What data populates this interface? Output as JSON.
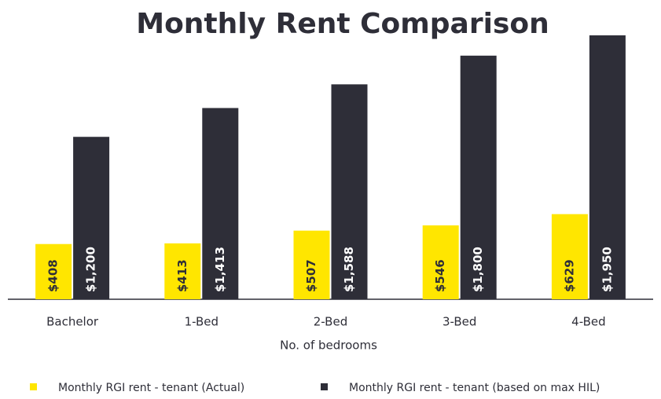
{
  "chart_data": {
    "type": "bar",
    "title": "Monthly Rent Comparison",
    "x_label": "No. of bedrooms",
    "categories": [
      "Bachelor",
      "1-Bed",
      "2-Bed",
      "3-Bed",
      "4-Bed"
    ],
    "series": [
      {
        "name": "Monthly RGI rent - tenant (Actual)",
        "color": "#ffe600",
        "values": [
          408,
          413,
          507,
          546,
          629
        ],
        "value_labels": [
          "$408",
          "$413",
          "$507",
          "$546",
          "$629"
        ]
      },
      {
        "name": "Monthly RGI rent - tenant (based on max HIL)",
        "color": "#2e2e38",
        "values": [
          1200,
          1413,
          1588,
          1800,
          1950
        ],
        "value_labels": [
          "$1,200",
          "$1,413",
          "$1,588",
          "$1,800",
          "$1,950"
        ]
      }
    ]
  }
}
